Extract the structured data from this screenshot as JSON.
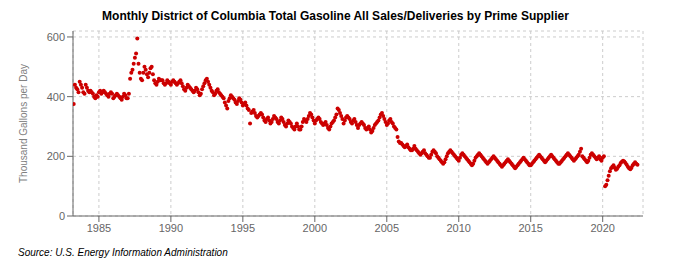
{
  "chart_data": {
    "type": "scatter",
    "title": "Monthly District of Columbia Total Gasoline All Sales/Deliveries by Prime Supplier",
    "ylabel": "Thousand Gallons per Day",
    "annotations": [
      "Source: U.S. Energy Information Administration"
    ],
    "color": "#cc0000",
    "xlim": [
      1983.2,
      2022.8
    ],
    "xticks": [
      1985,
      1990,
      1995,
      2000,
      2005,
      2010,
      2015,
      2020
    ],
    "ylim": [
      0,
      620
    ],
    "yticks": [
      0,
      200,
      400,
      600
    ],
    "grid": true,
    "x": [
      1983.25,
      1983.3333333333333,
      1983.4166666666667,
      1983.5,
      1983.5833333333333,
      1983.6666666666667,
      1983.75,
      1983.8333333333333,
      1983.9166666666667,
      1984.0,
      1984.0833333333333,
      1984.1666666666667,
      1984.25,
      1984.3333333333333,
      1984.4166666666667,
      1984.5,
      1984.5833333333333,
      1984.6666666666667,
      1984.75,
      1984.8333333333333,
      1984.9166666666667,
      1985.0,
      1985.0833333333333,
      1985.1666666666667,
      1985.25,
      1985.3333333333333,
      1985.4166666666667,
      1985.5,
      1985.5833333333333,
      1985.6666666666667,
      1985.75,
      1985.8333333333333,
      1985.9166666666667,
      1986.0,
      1986.0833333333333,
      1986.1666666666667,
      1986.25,
      1986.3333333333333,
      1986.4166666666667,
      1986.5,
      1986.5833333333333,
      1986.6666666666667,
      1986.75,
      1986.8333333333333,
      1986.9166666666667,
      1987.0,
      1987.0833333333333,
      1987.1666666666667,
      1987.25,
      1987.3333333333333,
      1987.4166666666667,
      1987.5,
      1987.5833333333333,
      1987.6666666666667,
      1987.75,
      1987.8333333333333,
      1987.9166666666667,
      1988.0,
      1988.0833333333333,
      1988.1666666666667,
      1988.25,
      1988.3333333333333,
      1988.4166666666667,
      1988.5,
      1988.5833333333333,
      1988.6666666666667,
      1988.75,
      1988.8333333333333,
      1988.9166666666667,
      1989.0,
      1989.0833333333333,
      1989.1666666666667,
      1989.25,
      1989.3333333333333,
      1989.4166666666667,
      1989.5,
      1989.5833333333333,
      1989.6666666666667,
      1989.75,
      1989.8333333333333,
      1989.9166666666667,
      1990.0,
      1990.0833333333333,
      1990.1666666666667,
      1990.25,
      1990.3333333333333,
      1990.4166666666667,
      1990.5,
      1990.5833333333333,
      1990.6666666666667,
      1990.75,
      1990.8333333333333,
      1990.9166666666667,
      1991.0,
      1991.0833333333333,
      1991.1666666666667,
      1991.25,
      1991.3333333333333,
      1991.4166666666667,
      1991.5,
      1991.5833333333333,
      1991.6666666666667,
      1991.75,
      1991.8333333333333,
      1991.9166666666667,
      1992.0,
      1992.0833333333333,
      1992.1666666666667,
      1992.25,
      1992.3333333333333,
      1992.4166666666667,
      1992.5,
      1992.5833333333333,
      1992.6666666666667,
      1992.75,
      1992.8333333333333,
      1992.9166666666667,
      1993.0,
      1993.0833333333333,
      1993.1666666666667,
      1993.25,
      1993.3333333333333,
      1993.4166666666667,
      1993.5,
      1993.5833333333333,
      1993.6666666666667,
      1993.75,
      1993.8333333333333,
      1993.9166666666667,
      1994.0,
      1994.0833333333333,
      1994.1666666666667,
      1994.25,
      1994.3333333333333,
      1994.4166666666667,
      1994.5,
      1994.5833333333333,
      1994.6666666666667,
      1994.75,
      1994.8333333333333,
      1994.9166666666667,
      1995.0,
      1995.0833333333333,
      1995.1666666666667,
      1995.25,
      1995.3333333333333,
      1995.4166666666667,
      1995.5,
      1995.5833333333333,
      1995.6666666666667,
      1995.75,
      1995.8333333333333,
      1995.9166666666667,
      1996.0,
      1996.0833333333333,
      1996.1666666666667,
      1996.25,
      1996.3333333333333,
      1996.4166666666667,
      1996.5,
      1996.5833333333333,
      1996.6666666666667,
      1996.75,
      1996.8333333333333,
      1996.9166666666667,
      1997.0,
      1997.0833333333333,
      1997.1666666666667,
      1997.25,
      1997.3333333333333,
      1997.4166666666667,
      1997.5,
      1997.5833333333333,
      1997.6666666666667,
      1997.75,
      1997.8333333333333,
      1997.9166666666667,
      1998.0,
      1998.0833333333333,
      1998.1666666666667,
      1998.25,
      1998.3333333333333,
      1998.4166666666667,
      1998.5,
      1998.5833333333333,
      1998.6666666666667,
      1998.75,
      1998.8333333333333,
      1998.9166666666667,
      1999.0,
      1999.0833333333333,
      1999.1666666666667,
      1999.25,
      1999.3333333333333,
      1999.4166666666667,
      1999.5,
      1999.5833333333333,
      1999.6666666666667,
      1999.75,
      1999.8333333333333,
      1999.9166666666667,
      2000.0,
      2000.0833333333333,
      2000.1666666666667,
      2000.25,
      2000.3333333333333,
      2000.4166666666667,
      2000.5,
      2000.5833333333333,
      2000.6666666666667,
      2000.75,
      2000.8333333333333,
      2000.9166666666667,
      2001.0,
      2001.0833333333333,
      2001.1666666666667,
      2001.25,
      2001.3333333333333,
      2001.4166666666667,
      2001.5,
      2001.5833333333333,
      2001.6666666666667,
      2001.75,
      2001.8333333333333,
      2001.9166666666667,
      2002.0,
      2002.0833333333333,
      2002.1666666666667,
      2002.25,
      2002.3333333333333,
      2002.4166666666667,
      2002.5,
      2002.5833333333333,
      2002.6666666666667,
      2002.75,
      2002.8333333333333,
      2002.9166666666667,
      2003.0,
      2003.0833333333333,
      2003.1666666666667,
      2003.25,
      2003.3333333333333,
      2003.4166666666667,
      2003.5,
      2003.5833333333333,
      2003.6666666666667,
      2003.75,
      2003.8333333333333,
      2003.9166666666667,
      2004.0,
      2004.0833333333333,
      2004.1666666666667,
      2004.25,
      2004.3333333333333,
      2004.4166666666667,
      2004.5,
      2004.5833333333333,
      2004.6666666666667,
      2004.75,
      2004.8333333333333,
      2004.9166666666667,
      2005.0,
      2005.0833333333333,
      2005.1666666666667,
      2005.25,
      2005.3333333333333,
      2005.4166666666667,
      2005.5,
      2005.5833333333333,
      2005.6666666666667,
      2005.75,
      2005.8333333333333,
      2005.9166666666667,
      2006.0,
      2006.0833333333333,
      2006.1666666666667,
      2006.25,
      2006.3333333333333,
      2006.4166666666667,
      2006.5,
      2006.5833333333333,
      2006.6666666666667,
      2006.75,
      2006.8333333333333,
      2006.9166666666667,
      2007.0,
      2007.0833333333333,
      2007.1666666666667,
      2007.25,
      2007.3333333333333,
      2007.4166666666667,
      2007.5,
      2007.5833333333333,
      2007.6666666666667,
      2007.75,
      2007.8333333333333,
      2007.9166666666667,
      2008.0,
      2008.0833333333333,
      2008.1666666666667,
      2008.25,
      2008.3333333333333,
      2008.4166666666667,
      2008.5,
      2008.5833333333333,
      2008.6666666666667,
      2008.75,
      2008.8333333333333,
      2008.9166666666667,
      2009.0,
      2009.0833333333333,
      2009.1666666666667,
      2009.25,
      2009.3333333333333,
      2009.4166666666667,
      2009.5,
      2009.5833333333333,
      2009.6666666666667,
      2009.75,
      2009.8333333333333,
      2009.9166666666667,
      2010.0,
      2010.0833333333333,
      2010.1666666666667,
      2010.25,
      2010.3333333333333,
      2010.4166666666667,
      2010.5,
      2010.5833333333333,
      2010.6666666666667,
      2010.75,
      2010.8333333333333,
      2010.9166666666667,
      2011.0,
      2011.0833333333333,
      2011.1666666666667,
      2011.25,
      2011.3333333333333,
      2011.4166666666667,
      2011.5,
      2011.5833333333333,
      2011.6666666666667,
      2011.75,
      2011.8333333333333,
      2011.9166666666667,
      2012.0,
      2012.0833333333333,
      2012.1666666666667,
      2012.25,
      2012.3333333333333,
      2012.4166666666667,
      2012.5,
      2012.5833333333333,
      2012.6666666666667,
      2012.75,
      2012.8333333333333,
      2012.9166666666667,
      2013.0,
      2013.0833333333333,
      2013.1666666666667,
      2013.25,
      2013.3333333333333,
      2013.4166666666667,
      2013.5,
      2013.5833333333333,
      2013.6666666666667,
      2013.75,
      2013.8333333333333,
      2013.9166666666667,
      2014.0,
      2014.0833333333333,
      2014.1666666666667,
      2014.25,
      2014.3333333333333,
      2014.4166666666667,
      2014.5,
      2014.5833333333333,
      2014.6666666666667,
      2014.75,
      2014.8333333333333,
      2014.9166666666667,
      2015.0,
      2015.0833333333333,
      2015.1666666666667,
      2015.25,
      2015.3333333333333,
      2015.4166666666667,
      2015.5,
      2015.5833333333333,
      2015.6666666666667,
      2015.75,
      2015.8333333333333,
      2015.9166666666667,
      2016.0,
      2016.0833333333333,
      2016.1666666666667,
      2016.25,
      2016.3333333333333,
      2016.4166666666667,
      2016.5,
      2016.5833333333333,
      2016.6666666666667,
      2016.75,
      2016.8333333333333,
      2016.9166666666667,
      2017.0,
      2017.0833333333333,
      2017.1666666666667,
      2017.25,
      2017.3333333333333,
      2017.4166666666667,
      2017.5,
      2017.5833333333333,
      2017.6666666666667,
      2017.75,
      2017.8333333333333,
      2017.9166666666667,
      2018.0,
      2018.0833333333333,
      2018.1666666666667,
      2018.25,
      2018.3333333333333,
      2018.4166666666667,
      2018.5,
      2018.5833333333333,
      2018.6666666666667,
      2018.75,
      2018.8333333333333,
      2018.9166666666667,
      2019.0,
      2019.0833333333333,
      2019.1666666666667,
      2019.25,
      2019.3333333333333,
      2019.4166666666667,
      2019.5,
      2019.5833333333333,
      2019.6666666666667,
      2019.75,
      2019.8333333333333,
      2019.9166666666667,
      2020.0,
      2020.0833333333333,
      2020.1666666666667,
      2020.25,
      2020.3333333333333,
      2020.4166666666667,
      2020.5,
      2020.5833333333333,
      2020.6666666666667,
      2020.75,
      2020.8333333333333,
      2020.9166666666667,
      2021.0,
      2021.0833333333333,
      2021.1666666666667,
      2021.25,
      2021.3333333333333,
      2021.4166666666667,
      2021.5,
      2021.5833333333333,
      2021.6666666666667,
      2021.75,
      2021.8333333333333,
      2021.9166666666667,
      2022.0,
      2022.0833333333333,
      2022.1666666666667,
      2022.25,
      2022.3333333333333,
      2022.4166666666667
    ],
    "values": [
      375,
      440,
      430,
      425,
      415,
      450,
      440,
      430,
      415,
      410,
      440,
      430,
      420,
      415,
      420,
      415,
      410,
      400,
      395,
      405,
      400,
      415,
      420,
      410,
      415,
      420,
      415,
      410,
      405,
      400,
      410,
      415,
      410,
      395,
      400,
      405,
      410,
      405,
      400,
      395,
      390,
      400,
      410,
      405,
      395,
      395,
      410,
      460,
      480,
      490,
      510,
      530,
      545,
      595,
      510,
      480,
      460,
      455,
      480,
      500,
      490,
      475,
      465,
      480,
      495,
      500,
      475,
      455,
      445,
      440,
      450,
      460,
      455,
      455,
      455,
      445,
      440,
      445,
      455,
      450,
      445,
      440,
      450,
      455,
      450,
      445,
      440,
      445,
      450,
      455,
      445,
      435,
      425,
      420,
      430,
      440,
      435,
      430,
      425,
      420,
      415,
      420,
      430,
      425,
      415,
      405,
      410,
      425,
      435,
      445,
      455,
      460,
      450,
      440,
      430,
      420,
      415,
      405,
      410,
      420,
      425,
      415,
      410,
      405,
      400,
      395,
      380,
      370,
      360,
      385,
      395,
      405,
      400,
      395,
      390,
      380,
      375,
      385,
      395,
      390,
      380,
      370,
      375,
      380,
      370,
      360,
      355,
      310,
      345,
      350,
      355,
      345,
      335,
      330,
      335,
      340,
      345,
      340,
      330,
      320,
      315,
      325,
      330,
      320,
      310,
      315,
      325,
      335,
      330,
      325,
      315,
      310,
      320,
      330,
      325,
      315,
      305,
      300,
      310,
      320,
      315,
      310,
      300,
      295,
      290,
      300,
      310,
      300,
      290,
      290,
      300,
      315,
      325,
      320,
      315,
      325,
      335,
      345,
      340,
      330,
      320,
      310,
      320,
      325,
      330,
      325,
      315,
      310,
      305,
      310,
      315,
      305,
      295,
      290,
      300,
      310,
      315,
      320,
      330,
      340,
      360,
      355,
      345,
      335,
      325,
      310,
      320,
      330,
      335,
      330,
      325,
      315,
      310,
      320,
      325,
      315,
      305,
      295,
      305,
      310,
      315,
      310,
      305,
      295,
      290,
      295,
      300,
      290,
      280,
      285,
      295,
      305,
      310,
      315,
      320,
      330,
      340,
      345,
      335,
      325,
      315,
      305,
      310,
      320,
      325,
      315,
      310,
      300,
      295,
      290,
      265,
      250,
      245,
      245,
      240,
      235,
      230,
      235,
      240,
      230,
      225,
      220,
      220,
      225,
      235,
      225,
      220,
      215,
      210,
      205,
      210,
      215,
      220,
      210,
      205,
      200,
      195,
      195,
      205,
      215,
      220,
      215,
      210,
      200,
      195,
      190,
      185,
      180,
      175,
      180,
      190,
      200,
      210,
      215,
      220,
      215,
      210,
      205,
      200,
      195,
      190,
      185,
      195,
      205,
      210,
      205,
      200,
      195,
      190,
      185,
      180,
      175,
      170,
      175,
      185,
      195,
      200,
      205,
      210,
      205,
      200,
      195,
      190,
      185,
      180,
      175,
      180,
      185,
      190,
      195,
      200,
      195,
      190,
      185,
      180,
      175,
      170,
      165,
      170,
      175,
      180,
      185,
      190,
      185,
      180,
      175,
      170,
      165,
      160,
      165,
      170,
      175,
      180,
      185,
      190,
      195,
      190,
      185,
      180,
      175,
      170,
      170,
      175,
      180,
      185,
      190,
      195,
      200,
      205,
      200,
      195,
      190,
      185,
      180,
      185,
      190,
      195,
      200,
      205,
      200,
      195,
      190,
      185,
      180,
      175,
      175,
      180,
      185,
      190,
      195,
      200,
      205,
      210,
      205,
      200,
      195,
      190,
      185,
      190,
      195,
      200,
      205,
      215,
      225,
      200,
      195,
      190,
      185,
      180,
      185,
      195,
      205,
      210,
      205,
      200,
      195,
      190,
      195,
      200,
      190,
      185,
      195,
      200,
      100,
      105,
      120,
      135,
      150,
      160,
      165,
      170,
      162,
      155,
      158,
      165,
      170,
      178,
      182,
      185,
      183,
      178,
      172,
      165,
      160,
      157,
      162,
      170,
      175,
      180,
      175,
      172
    ]
  }
}
